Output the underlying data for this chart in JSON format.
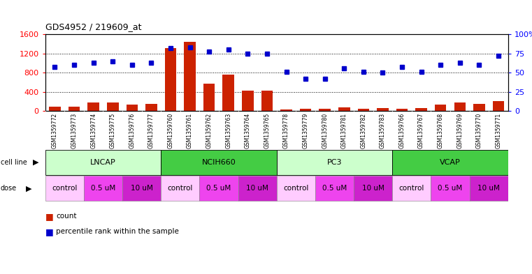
{
  "title": "GDS4952 / 219609_at",
  "samples": [
    "GSM1359772",
    "GSM1359773",
    "GSM1359774",
    "GSM1359775",
    "GSM1359776",
    "GSM1359777",
    "GSM1359760",
    "GSM1359761",
    "GSM1359762",
    "GSM1359763",
    "GSM1359764",
    "GSM1359765",
    "GSM1359778",
    "GSM1359779",
    "GSM1359780",
    "GSM1359781",
    "GSM1359782",
    "GSM1359783",
    "GSM1359766",
    "GSM1359767",
    "GSM1359768",
    "GSM1359769",
    "GSM1359770",
    "GSM1359771"
  ],
  "counts": [
    90,
    90,
    175,
    170,
    140,
    145,
    1310,
    1440,
    570,
    760,
    430,
    430,
    25,
    50,
    50,
    75,
    50,
    55,
    50,
    55,
    140,
    175,
    145,
    205
  ],
  "percentiles": [
    57,
    60,
    63,
    65,
    60,
    63,
    82,
    83,
    77,
    80,
    75,
    75,
    51,
    42,
    42,
    56,
    51,
    50,
    57,
    51,
    60,
    63,
    60,
    72
  ],
  "cell_line_groups": [
    {
      "name": "LNCAP",
      "start": 0,
      "end": 6,
      "color": "#ccffcc"
    },
    {
      "name": "NCIH660",
      "start": 6,
      "end": 12,
      "color": "#44cc44"
    },
    {
      "name": "PC3",
      "start": 12,
      "end": 18,
      "color": "#ccffcc"
    },
    {
      "name": "VCAP",
      "start": 18,
      "end": 24,
      "color": "#44cc44"
    }
  ],
  "dose_groups": [
    {
      "name": "control",
      "start": 0,
      "end": 2,
      "color": "#ffccff"
    },
    {
      "name": "0.5 uM",
      "start": 2,
      "end": 4,
      "color": "#ee44ee"
    },
    {
      "name": "10 uM",
      "start": 4,
      "end": 6,
      "color": "#cc22cc"
    },
    {
      "name": "control",
      "start": 6,
      "end": 8,
      "color": "#ffccff"
    },
    {
      "name": "0.5 uM",
      "start": 8,
      "end": 10,
      "color": "#ee44ee"
    },
    {
      "name": "10 uM",
      "start": 10,
      "end": 12,
      "color": "#cc22cc"
    },
    {
      "name": "control",
      "start": 12,
      "end": 14,
      "color": "#ffccff"
    },
    {
      "name": "0.5 uM",
      "start": 14,
      "end": 16,
      "color": "#ee44ee"
    },
    {
      "name": "10 uM",
      "start": 16,
      "end": 18,
      "color": "#cc22cc"
    },
    {
      "name": "control",
      "start": 18,
      "end": 20,
      "color": "#ffccff"
    },
    {
      "name": "0.5 uM",
      "start": 20,
      "end": 22,
      "color": "#ee44ee"
    },
    {
      "name": "10 uM",
      "start": 22,
      "end": 24,
      "color": "#cc22cc"
    }
  ],
  "left_ylim": [
    0,
    1600
  ],
  "left_yticks": [
    0,
    400,
    800,
    1200,
    1600
  ],
  "right_ylim": [
    0,
    100
  ],
  "right_yticks": [
    0,
    25,
    50,
    75,
    100
  ],
  "right_yticklabels": [
    "0",
    "25",
    "50",
    "75",
    "100%"
  ],
  "bar_color": "#cc2200",
  "dot_color": "#0000cc",
  "bg_color": "#ffffff"
}
